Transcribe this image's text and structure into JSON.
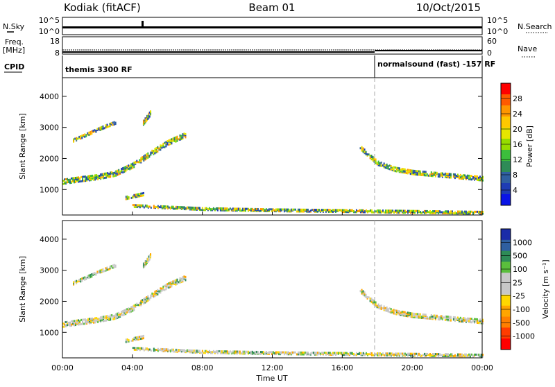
{
  "header": {
    "station": "Kodiak (fitACF)",
    "beam": "Beam 01",
    "date": "10/Oct/2015"
  },
  "strips": {
    "nsky_label": "N.Sky",
    "nsky_ticks": [
      "10^5",
      "10^0"
    ],
    "nsearch_label": "N.Search",
    "nsearch_ticks": [
      "10^5",
      "10^0"
    ],
    "freq_label_line1": "Freq.",
    "freq_label_line2": "[MHz]",
    "freq_ticks": [
      "18",
      "8"
    ],
    "nave_label": "Nave",
    "nave_ticks": [
      "60",
      "0"
    ],
    "cpid_label": "CPID",
    "cpid_segments": [
      {
        "name": "themis 3300 RF",
        "start_hour": 0,
        "end_hour": 18
      },
      {
        "name": "normalsound (fast) -157 RF",
        "start_hour": 18,
        "end_hour": 24
      }
    ]
  },
  "axes": {
    "ylabel": "Slant Range [km]",
    "xlabel": "Time UT",
    "x_ticks": [
      "00:00",
      "04:00",
      "08:00",
      "12:00",
      "16:00",
      "20:00",
      "00:00"
    ],
    "y_ticks": [
      "1000",
      "2000",
      "3000",
      "4000"
    ]
  },
  "colorbars": {
    "power_label": "Power [dB]",
    "power_ticks": [
      "28",
      "24",
      "20",
      "16",
      "12",
      "8",
      "4"
    ],
    "power_colors": [
      "#ff0000",
      "#ff5a00",
      "#ff9600",
      "#ffc800",
      "#e6e600",
      "#96dc00",
      "#3cbe3c",
      "#2e8b57",
      "#2f5fa0",
      "#1e3cb4",
      "#0a14e6"
    ],
    "velocity_label": "Velocity [m s⁻¹]",
    "velocity_ticks": [
      "1000",
      "500",
      "100",
      "25",
      "-25",
      "-100",
      "-500",
      "-1000"
    ],
    "velocity_colors": [
      "#1a2ca8",
      "#2f5fa0",
      "#2e8b57",
      "#5abe3c",
      "#c8c8c8",
      "#c8c8c8",
      "#ffd700",
      "#ffa500",
      "#ff7f00",
      "#ff3c00",
      "#ff0000"
    ]
  },
  "chart_data": {
    "type": "heatmap",
    "x_range_hours": [
      0,
      24
    ],
    "y_range_km": [
      180,
      4600
    ],
    "mode_change_hour": 18,
    "echo_regions": [
      {
        "name": "dense band",
        "t": [
          0,
          1,
          2,
          3,
          4,
          5,
          6,
          7
        ],
        "r": [
          1300,
          1380,
          1450,
          1560,
          1820,
          2200,
          2550,
          2800
        ],
        "width_km": 170
      },
      {
        "name": "upper arc",
        "t": [
          0.6,
          1.5,
          2.3,
          3.0
        ],
        "r": [
          2630,
          2850,
          3050,
          3200
        ],
        "width_km": 110
      },
      {
        "name": "spike",
        "t": [
          4.6,
          5.0
        ],
        "r": [
          3200,
          3500
        ],
        "width_km": 160
      },
      {
        "name": "small blob",
        "t": [
          3.6,
          4.6
        ],
        "r": [
          780,
          900
        ],
        "width_km": 110
      },
      {
        "name": "near band",
        "t": [
          4.0,
          8.0,
          12.0,
          17.0,
          24.0
        ],
        "r": [
          520,
          420,
          380,
          350,
          300
        ],
        "width_km": 90
      },
      {
        "name": "recovery band",
        "t": [
          17.0,
          18.0,
          19.0,
          20.0,
          22.0,
          24.0
        ],
        "r": [
          2400,
          1900,
          1700,
          1600,
          1500,
          1400
        ],
        "width_km": 150
      }
    ]
  }
}
